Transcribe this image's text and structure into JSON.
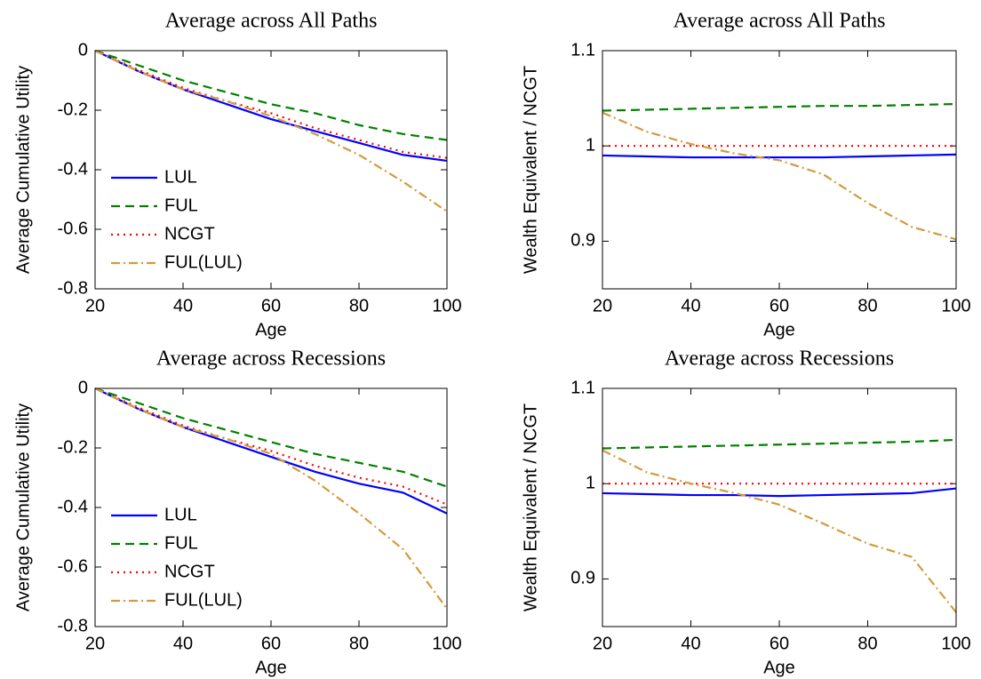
{
  "chart_data": [
    {
      "type": "line",
      "title": "Average across All Paths",
      "xlabel": "Age",
      "ylabel": "Average Cumulative Utility",
      "x": [
        20,
        30,
        40,
        50,
        60,
        70,
        80,
        90,
        100
      ],
      "xlim": [
        20,
        100
      ],
      "xticks": [
        20,
        40,
        60,
        80,
        100
      ],
      "ylim": [
        -0.8,
        0
      ],
      "yticks": [
        -0.8,
        -0.6,
        -0.4,
        -0.2,
        0
      ],
      "legend": "lower left",
      "series": [
        {
          "name": "LUL",
          "color": "#0000ff",
          "style": "solid",
          "values": [
            0,
            -0.07,
            -0.13,
            -0.18,
            -0.23,
            -0.27,
            -0.31,
            -0.35,
            -0.37
          ]
        },
        {
          "name": "FUL",
          "color": "#008000",
          "style": "dashed",
          "values": [
            0,
            -0.05,
            -0.1,
            -0.14,
            -0.18,
            -0.21,
            -0.25,
            -0.28,
            -0.3
          ]
        },
        {
          "name": "NCGT",
          "color": "#ff0000",
          "style": "dotted",
          "values": [
            0,
            -0.065,
            -0.125,
            -0.17,
            -0.21,
            -0.26,
            -0.3,
            -0.34,
            -0.36
          ]
        },
        {
          "name": "FUL(LUL)",
          "color": "#d49a3c",
          "style": "dashdot",
          "values": [
            0,
            -0.07,
            -0.13,
            -0.17,
            -0.22,
            -0.28,
            -0.35,
            -0.44,
            -0.54
          ]
        }
      ]
    },
    {
      "type": "line",
      "title": "Average across All Paths",
      "xlabel": "Age",
      "ylabel": "Wealth Equivalent / NCGT",
      "x": [
        20,
        30,
        40,
        50,
        60,
        70,
        80,
        90,
        100
      ],
      "xlim": [
        20,
        100
      ],
      "xticks": [
        20,
        40,
        60,
        80,
        100
      ],
      "ylim": [
        0.85,
        1.1
      ],
      "yticks": [
        0.9,
        1,
        1.1
      ],
      "series": [
        {
          "color": "#0000ff",
          "style": "solid",
          "values": [
            0.99,
            0.989,
            0.988,
            0.988,
            0.988,
            0.988,
            0.989,
            0.99,
            0.991
          ]
        },
        {
          "color": "#008000",
          "style": "dashed",
          "values": [
            1.037,
            1.038,
            1.039,
            1.04,
            1.041,
            1.042,
            1.042,
            1.043,
            1.044
          ]
        },
        {
          "color": "#ff0000",
          "style": "dotted",
          "values": [
            1,
            1,
            1,
            1,
            1,
            1,
            1,
            1,
            1
          ]
        },
        {
          "color": "#d49a3c",
          "style": "dashdot",
          "values": [
            1.035,
            1.015,
            1.002,
            0.992,
            0.985,
            0.97,
            0.94,
            0.915,
            0.902
          ]
        }
      ]
    },
    {
      "type": "line",
      "title": "Average across Recessions",
      "xlabel": "Age",
      "ylabel": "Average Cumulative Utility",
      "x": [
        20,
        30,
        40,
        50,
        60,
        70,
        80,
        90,
        100
      ],
      "xlim": [
        20,
        100
      ],
      "xticks": [
        20,
        40,
        60,
        80,
        100
      ],
      "ylim": [
        -0.8,
        0
      ],
      "yticks": [
        -0.8,
        -0.6,
        -0.4,
        -0.2,
        0
      ],
      "legend": "lower left",
      "series": [
        {
          "name": "LUL",
          "color": "#0000ff",
          "style": "solid",
          "values": [
            0,
            -0.07,
            -0.13,
            -0.18,
            -0.23,
            -0.28,
            -0.32,
            -0.35,
            -0.42
          ]
        },
        {
          "name": "FUL",
          "color": "#008000",
          "style": "dashed",
          "values": [
            0,
            -0.05,
            -0.1,
            -0.14,
            -0.18,
            -0.22,
            -0.25,
            -0.28,
            -0.33
          ]
        },
        {
          "name": "NCGT",
          "color": "#ff0000",
          "style": "dotted",
          "values": [
            0,
            -0.065,
            -0.125,
            -0.17,
            -0.21,
            -0.26,
            -0.3,
            -0.33,
            -0.39
          ]
        },
        {
          "name": "FUL(LUL)",
          "color": "#d49a3c",
          "style": "dashdot",
          "values": [
            0,
            -0.07,
            -0.13,
            -0.17,
            -0.22,
            -0.31,
            -0.42,
            -0.54,
            -0.74
          ]
        }
      ]
    },
    {
      "type": "line",
      "title": "Average across Recessions",
      "xlabel": "Age",
      "ylabel": "Wealth Equivalent / NCGT",
      "x": [
        20,
        30,
        40,
        50,
        60,
        70,
        80,
        90,
        100
      ],
      "xlim": [
        20,
        100
      ],
      "xticks": [
        20,
        40,
        60,
        80,
        100
      ],
      "ylim": [
        0.85,
        1.1
      ],
      "yticks": [
        0.9,
        1,
        1.1
      ],
      "series": [
        {
          "color": "#0000ff",
          "style": "solid",
          "values": [
            0.99,
            0.989,
            0.988,
            0.988,
            0.987,
            0.988,
            0.989,
            0.99,
            0.995
          ]
        },
        {
          "color": "#008000",
          "style": "dashed",
          "values": [
            1.037,
            1.038,
            1.039,
            1.04,
            1.041,
            1.042,
            1.043,
            1.044,
            1.046
          ]
        },
        {
          "color": "#ff0000",
          "style": "dotted",
          "values": [
            1,
            1,
            1,
            1,
            1,
            1,
            1,
            1,
            1
          ]
        },
        {
          "color": "#d49a3c",
          "style": "dashdot",
          "values": [
            1.035,
            1.012,
            1,
            0.99,
            0.978,
            0.958,
            0.937,
            0.923,
            0.865
          ]
        }
      ]
    }
  ]
}
